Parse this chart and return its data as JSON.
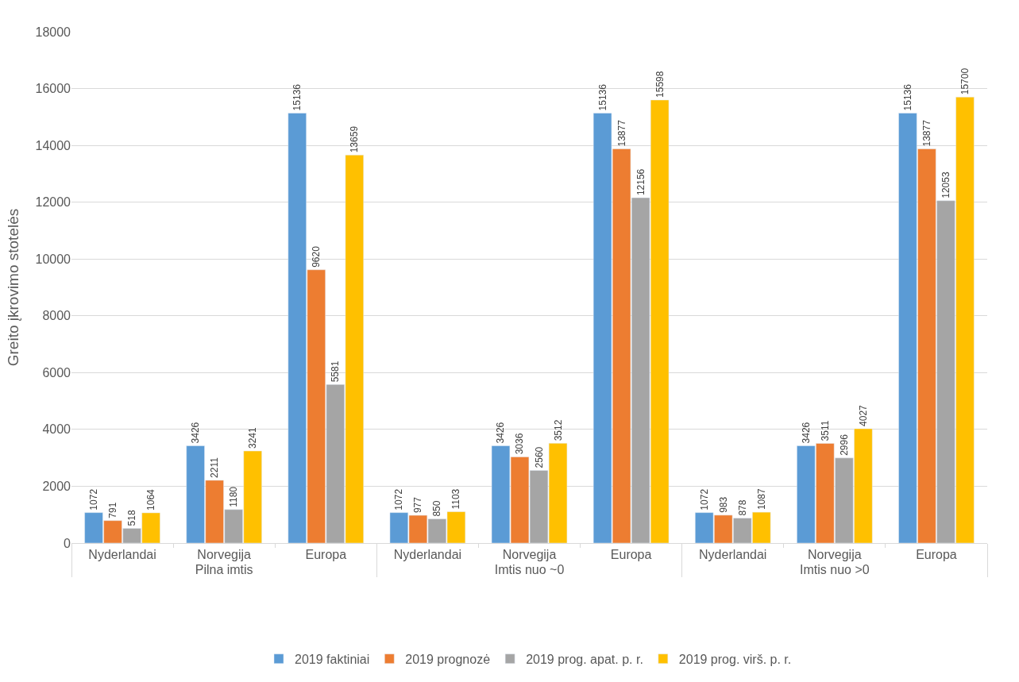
{
  "chart_data": {
    "type": "bar",
    "ylabel": "Greito įkrovimo stotelės",
    "categories": [
      "Nyderlandai",
      "Norvegija",
      "Europa",
      "Nyderlandai",
      "Norvegija",
      "Europa",
      "Nyderlandai",
      "Norvegija",
      "Europa"
    ],
    "annotations": [
      "Pilna imtis",
      "Imtis nuo ~0",
      "Imtis nuo >0"
    ],
    "series": [
      {
        "name": "2019 faktiniai",
        "color": "#5b9bd5",
        "values": [
          1072,
          3426,
          15136,
          1072,
          3426,
          15136,
          1072,
          3426,
          15136
        ]
      },
      {
        "name": "2019 prognozė",
        "color": "#ed7d31",
        "values": [
          791,
          2211,
          9620,
          977,
          3036,
          13877,
          983,
          3511,
          13877
        ]
      },
      {
        "name": "2019 prog. apat. p. r.",
        "color": "#a5a5a5",
        "values": [
          518,
          1180,
          5581,
          850,
          2560,
          12156,
          878,
          2996,
          12053
        ]
      },
      {
        "name": "2019 prog. virš. p. r.",
        "color": "#ffc000",
        "values": [
          1064,
          3241,
          13659,
          1103,
          3512,
          15598,
          1087,
          4027,
          15700
        ]
      }
    ],
    "ylim": [
      0,
      18000
    ],
    "yticks": [
      0,
      2000,
      4000,
      6000,
      8000,
      10000,
      12000,
      14000,
      16000,
      18000
    ],
    "grid": "y",
    "legend": "bottom",
    "data_labels": true
  }
}
